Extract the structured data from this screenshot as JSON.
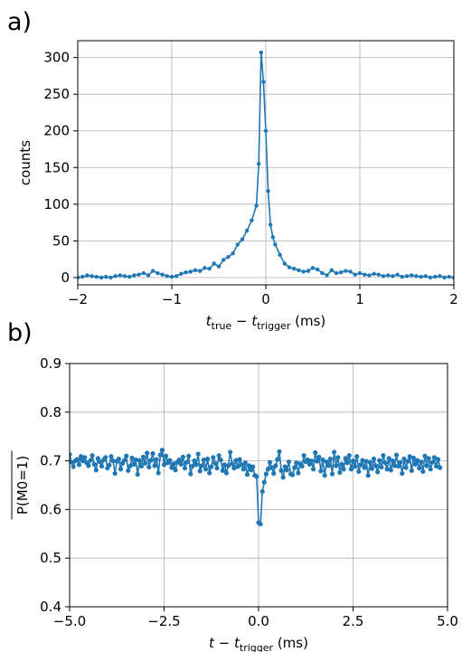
{
  "chart_data": [
    {
      "type": "line",
      "panel_label": "a)",
      "xlabel_main": "t",
      "xlabel_sub1": "true",
      "xlabel_mid": " − ",
      "xlabel_main2": "t",
      "xlabel_sub2": "trigger",
      "xlabel_unit": " (ms)",
      "ylabel": "counts",
      "xlim": [
        -2,
        2
      ],
      "ylim": [
        -10,
        323
      ],
      "xticks": [
        "−2",
        "−1",
        "0",
        "1",
        "2"
      ],
      "xtick_values": [
        -2,
        -1,
        0,
        1,
        2
      ],
      "yticks": [
        "0",
        "50",
        "100",
        "150",
        "200",
        "250",
        "300"
      ],
      "ytick_values": [
        0,
        50,
        100,
        150,
        200,
        250,
        300
      ],
      "grid": true,
      "color": "#1f77b4",
      "series": [
        {
          "x": [
            -2.0,
            -1.95,
            -1.9,
            -1.85,
            -1.8,
            -1.75,
            -1.7,
            -1.65,
            -1.6,
            -1.55,
            -1.5,
            -1.45,
            -1.4,
            -1.35,
            -1.3,
            -1.25,
            -1.2,
            -1.15,
            -1.1,
            -1.05,
            -1.0,
            -0.95,
            -0.9,
            -0.85,
            -0.8,
            -0.75,
            -0.7,
            -0.65,
            -0.6,
            -0.55,
            -0.5,
            -0.45,
            -0.4,
            -0.35,
            -0.3,
            -0.25,
            -0.2,
            -0.15,
            -0.1,
            -0.075,
            -0.05,
            -0.025,
            0.0,
            0.025,
            0.05,
            0.075,
            0.1,
            0.15,
            0.2,
            0.25,
            0.3,
            0.35,
            0.4,
            0.45,
            0.5,
            0.55,
            0.6,
            0.65,
            0.7,
            0.75,
            0.8,
            0.85,
            0.9,
            0.95,
            1.0,
            1.05,
            1.1,
            1.15,
            1.2,
            1.25,
            1.3,
            1.35,
            1.4,
            1.45,
            1.5,
            1.55,
            1.6,
            1.65,
            1.7,
            1.75,
            1.8,
            1.85,
            1.9,
            1.95,
            2.0
          ],
          "y": [
            0,
            1,
            3,
            2,
            1,
            0,
            1,
            0,
            2,
            3,
            2,
            1,
            3,
            4,
            6,
            3,
            9,
            6,
            4,
            2,
            1,
            2,
            5,
            7,
            8,
            10,
            9,
            13,
            12,
            19,
            15,
            24,
            28,
            33,
            45,
            52,
            64,
            78,
            98,
            155,
            307,
            267,
            200,
            118,
            72,
            55,
            45,
            31,
            19,
            14,
            12,
            10,
            8,
            9,
            13,
            11,
            6,
            3,
            10,
            6,
            7,
            9,
            8,
            4,
            6,
            4,
            3,
            5,
            4,
            2,
            3,
            2,
            4,
            1,
            2,
            3,
            2,
            1,
            2,
            0,
            1,
            2,
            0,
            1,
            0
          ]
        }
      ]
    },
    {
      "type": "line",
      "panel_label": "b)",
      "xlabel_main": "t",
      "xlabel_mid": " − ",
      "xlabel_main2": "t",
      "xlabel_sub2": "trigger",
      "xlabel_unit": " (ms)",
      "ylabel": "P(M0=1)",
      "xlim": [
        -5,
        5
      ],
      "ylim": [
        0.4,
        0.9
      ],
      "xticks": [
        "−5.0",
        "−2.5",
        "0.0",
        "2.5",
        "5.0"
      ],
      "xtick_values": [
        -5,
        -2.5,
        0,
        2.5,
        5
      ],
      "yticks": [
        "0.4",
        "0.5",
        "0.6",
        "0.7",
        "0.8",
        "0.9"
      ],
      "ytick_values": [
        0.4,
        0.5,
        0.6,
        0.7,
        0.8,
        0.9
      ],
      "grid": true,
      "color": "#1f77b4",
      "series": [
        {
          "x_start": -5.0,
          "x_step": 0.05,
          "y": [
            0.713,
            0.697,
            0.688,
            0.7,
            0.703,
            0.692,
            0.709,
            0.7,
            0.707,
            0.696,
            0.69,
            0.701,
            0.711,
            0.693,
            0.681,
            0.705,
            0.698,
            0.689,
            0.702,
            0.707,
            0.685,
            0.691,
            0.709,
            0.7,
            0.674,
            0.699,
            0.704,
            0.683,
            0.695,
            0.701,
            0.71,
            0.68,
            0.689,
            0.706,
            0.693,
            0.702,
            0.672,
            0.701,
            0.689,
            0.708,
            0.695,
            0.716,
            0.687,
            0.701,
            0.715,
            0.69,
            0.703,
            0.675,
            0.712,
            0.722,
            0.692,
            0.71,
            0.696,
            0.701,
            0.686,
            0.694,
            0.681,
            0.697,
            0.702,
            0.693,
            0.708,
            0.685,
            0.697,
            0.71,
            0.673,
            0.689,
            0.7,
            0.692,
            0.714,
            0.679,
            0.69,
            0.702,
            0.683,
            0.704,
            0.675,
            0.688,
            0.707,
            0.695,
            0.685,
            0.711,
            0.702,
            0.68,
            0.692,
            0.675,
            0.69,
            0.718,
            0.694,
            0.685,
            0.701,
            0.688,
            0.703,
            0.692,
            0.683,
            0.696,
            0.672,
            0.69,
            0.681,
            0.688,
            0.67,
            0.668,
            0.573,
            0.57,
            0.637,
            0.656,
            0.673,
            0.683,
            0.697,
            0.686,
            0.674,
            0.69,
            0.703,
            0.719,
            0.68,
            0.666,
            0.688,
            0.681,
            0.698,
            0.673,
            0.671,
            0.686,
            0.696,
            0.675,
            0.694,
            0.689,
            0.711,
            0.698,
            0.702,
            0.693,
            0.7,
            0.683,
            0.717,
            0.699,
            0.708,
            0.679,
            0.702,
            0.67,
            0.698,
            0.69,
            0.704,
            0.673,
            0.718,
            0.69,
            0.707,
            0.676,
            0.693,
            0.683,
            0.705,
            0.696,
            0.711,
            0.683,
            0.7,
            0.688,
            0.709,
            0.678,
            0.692,
            0.701,
            0.686,
            0.699,
            0.67,
            0.697,
            0.684,
            0.704,
            0.69,
            0.677,
            0.701,
            0.687,
            0.711,
            0.696,
            0.683,
            0.705,
            0.681,
            0.7,
            0.69,
            0.712,
            0.689,
            0.697,
            0.674,
            0.704,
            0.686,
            0.699,
            0.709,
            0.68,
            0.706,
            0.693,
            0.701,
            0.685,
            0.698,
            0.678,
            0.71,
            0.69,
            0.705,
            0.683,
            0.697,
            0.707,
            0.689,
            0.703,
            0.686
          ]
        }
      ]
    }
  ]
}
